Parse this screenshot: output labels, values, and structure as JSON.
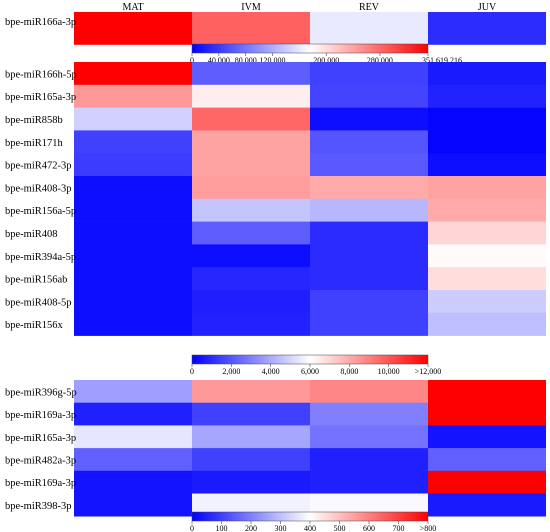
{
  "chart_data": {
    "type": "heatmap",
    "columns": [
      "MAT",
      "IVM",
      "REV",
      "JUV"
    ],
    "colors": {
      "low": "#0000ff",
      "mid": "#ffffff",
      "high": "#ff0000"
    },
    "blocks": [
      {
        "rows": [
          "bpe-miR166a-3p"
        ],
        "values": [
          [
            351619.216,
            285000,
            160000,
            30000
          ]
        ],
        "scale": {
          "min": 0,
          "mid": 175000,
          "max": 351619.216,
          "ticks": [
            {
              "value": 0,
              "label": "0"
            },
            {
              "value": 40000,
              "label": "40,000"
            },
            {
              "value": 80000,
              "label": "80,000"
            },
            {
              "value": 120000,
              "label": "120,000"
            },
            {
              "value": 200000,
              "label": "200,000"
            },
            {
              "value": 280000,
              "label": "280,000"
            },
            {
              "value": 351619.216,
              "label": "351,619.216"
            }
          ]
        }
      },
      {
        "rows": [
          "bpe-miR166h-5p",
          "bpe-miR165a-3p",
          "bpe-miR858b",
          "bpe-miR171h",
          "bpe-miR472-3p",
          "bpe-miR408-3p",
          "bpe-miR156a-5p",
          "bpe-miR408",
          "bpe-miR394a-5p",
          "bpe-miR156ab",
          "bpe-miR408-5p",
          "bpe-miR156x"
        ],
        "values": [
          [
            12000,
            2200,
            1500,
            600
          ],
          [
            8400,
            6400,
            1600,
            800
          ],
          [
            4900,
            9600,
            300,
            100
          ],
          [
            1500,
            8200,
            2000,
            100
          ],
          [
            1400,
            8200,
            2100,
            300
          ],
          [
            300,
            8300,
            8000,
            8200
          ],
          [
            300,
            4600,
            4300,
            8000
          ],
          [
            300,
            2200,
            1000,
            7000
          ],
          [
            300,
            300,
            1000,
            6100
          ],
          [
            300,
            900,
            1000,
            6800
          ],
          [
            300,
            700,
            1500,
            4800
          ],
          [
            300,
            800,
            1500,
            4500
          ]
        ],
        "scale": {
          "min": 0,
          "mid": 6000,
          "max": 12000,
          "ticks": [
            {
              "value": 0,
              "label": "0"
            },
            {
              "value": 2000,
              "label": "2,000"
            },
            {
              "value": 4000,
              "label": "4,000"
            },
            {
              "value": 6000,
              "label": "6,000"
            },
            {
              "value": 8000,
              "label": "8,000"
            },
            {
              "value": 10000,
              "label": "10,000"
            },
            {
              "value": 12000,
              "label": ">12,000"
            }
          ]
        }
      },
      {
        "rows": [
          "bpe-miR396g-5p",
          "bpe-miR169a-3p",
          "bpe-miR165a-3p",
          "bpe-miR482a-3p",
          "bpe-miR169a-3p",
          "bpe-miR398-3p"
        ],
        "values": [
          [
            250,
            560,
            590,
            800
          ],
          [
            50,
            100,
            200,
            800
          ],
          [
            360,
            260,
            180,
            30
          ],
          [
            150,
            100,
            50,
            150
          ],
          [
            30,
            40,
            50,
            800
          ],
          [
            30,
            380,
            390,
            40
          ]
        ],
        "scale": {
          "min": 0,
          "mid": 400,
          "max": 800,
          "ticks": [
            {
              "value": 0,
              "label": "0"
            },
            {
              "value": 100,
              "label": "100"
            },
            {
              "value": 200,
              "label": "200"
            },
            {
              "value": 300,
              "label": "300"
            },
            {
              "value": 400,
              "label": "400"
            },
            {
              "value": 500,
              "label": "500"
            },
            {
              "value": 600,
              "label": "600"
            },
            {
              "value": 700,
              "label": "700"
            },
            {
              "value": 800,
              "label": ">800"
            }
          ]
        }
      }
    ]
  }
}
